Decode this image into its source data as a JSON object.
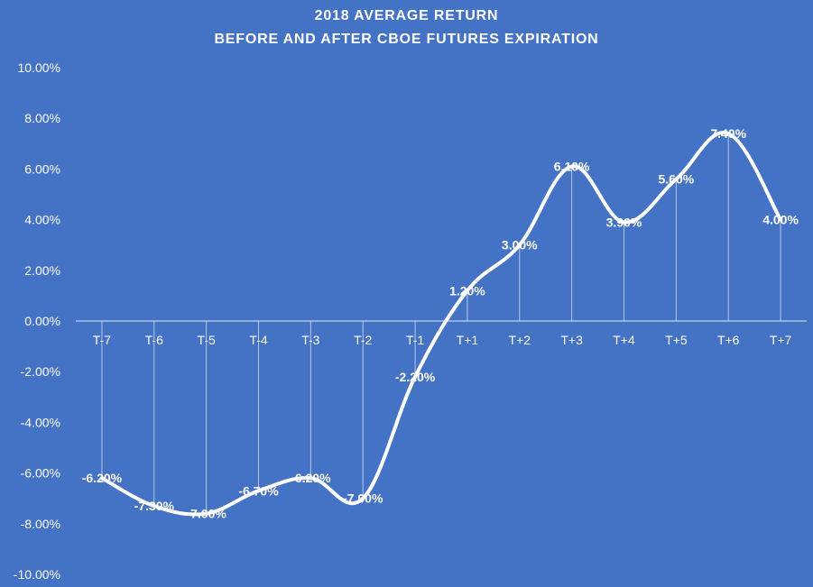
{
  "chart_data": {
    "type": "line",
    "title": "2018 AVERAGE RETURN",
    "subtitle": "BEFORE AND AFTER CBOE FUTURES EXPIRATION",
    "categories": [
      "T-7",
      "T-6",
      "T-5",
      "T-4",
      "T-3",
      "T-2",
      "T-1",
      "T+1",
      "T+2",
      "T+3",
      "T+4",
      "T+5",
      "T+6",
      "T+7"
    ],
    "series": [
      {
        "values": [
          -6.2,
          -7.3,
          -7.6,
          -6.7,
          -6.2,
          -7.0,
          -2.2,
          1.2,
          3.0,
          6.1,
          3.9,
          5.6,
          7.4,
          4.0
        ],
        "labels": [
          "-6.20%",
          "-7.30%",
          "-7.60%",
          "-6.70%",
          "-6.20%",
          "-7.00%",
          "-2.20%",
          "1.20%",
          "3.00%",
          "6.10%",
          "3.90%",
          "5.60%",
          "7.40%",
          "4.00%"
        ]
      }
    ],
    "ylim": [
      -10,
      10
    ],
    "yticks": [
      "10.00%",
      "8.00%",
      "6.00%",
      "4.00%",
      "2.00%",
      "0.00%",
      "-2.00%",
      "-4.00%",
      "-6.00%",
      "-8.00%",
      "-10.00%"
    ],
    "ytick_values": [
      10,
      8,
      6,
      4,
      2,
      0,
      -2,
      -4,
      -6,
      -8,
      -10
    ],
    "xlabel": "",
    "ylabel": "",
    "grid": false,
    "drop_lines": true,
    "colors": {
      "background": "#4472C4",
      "line": "#ffffff",
      "text": "#ffffff"
    }
  }
}
